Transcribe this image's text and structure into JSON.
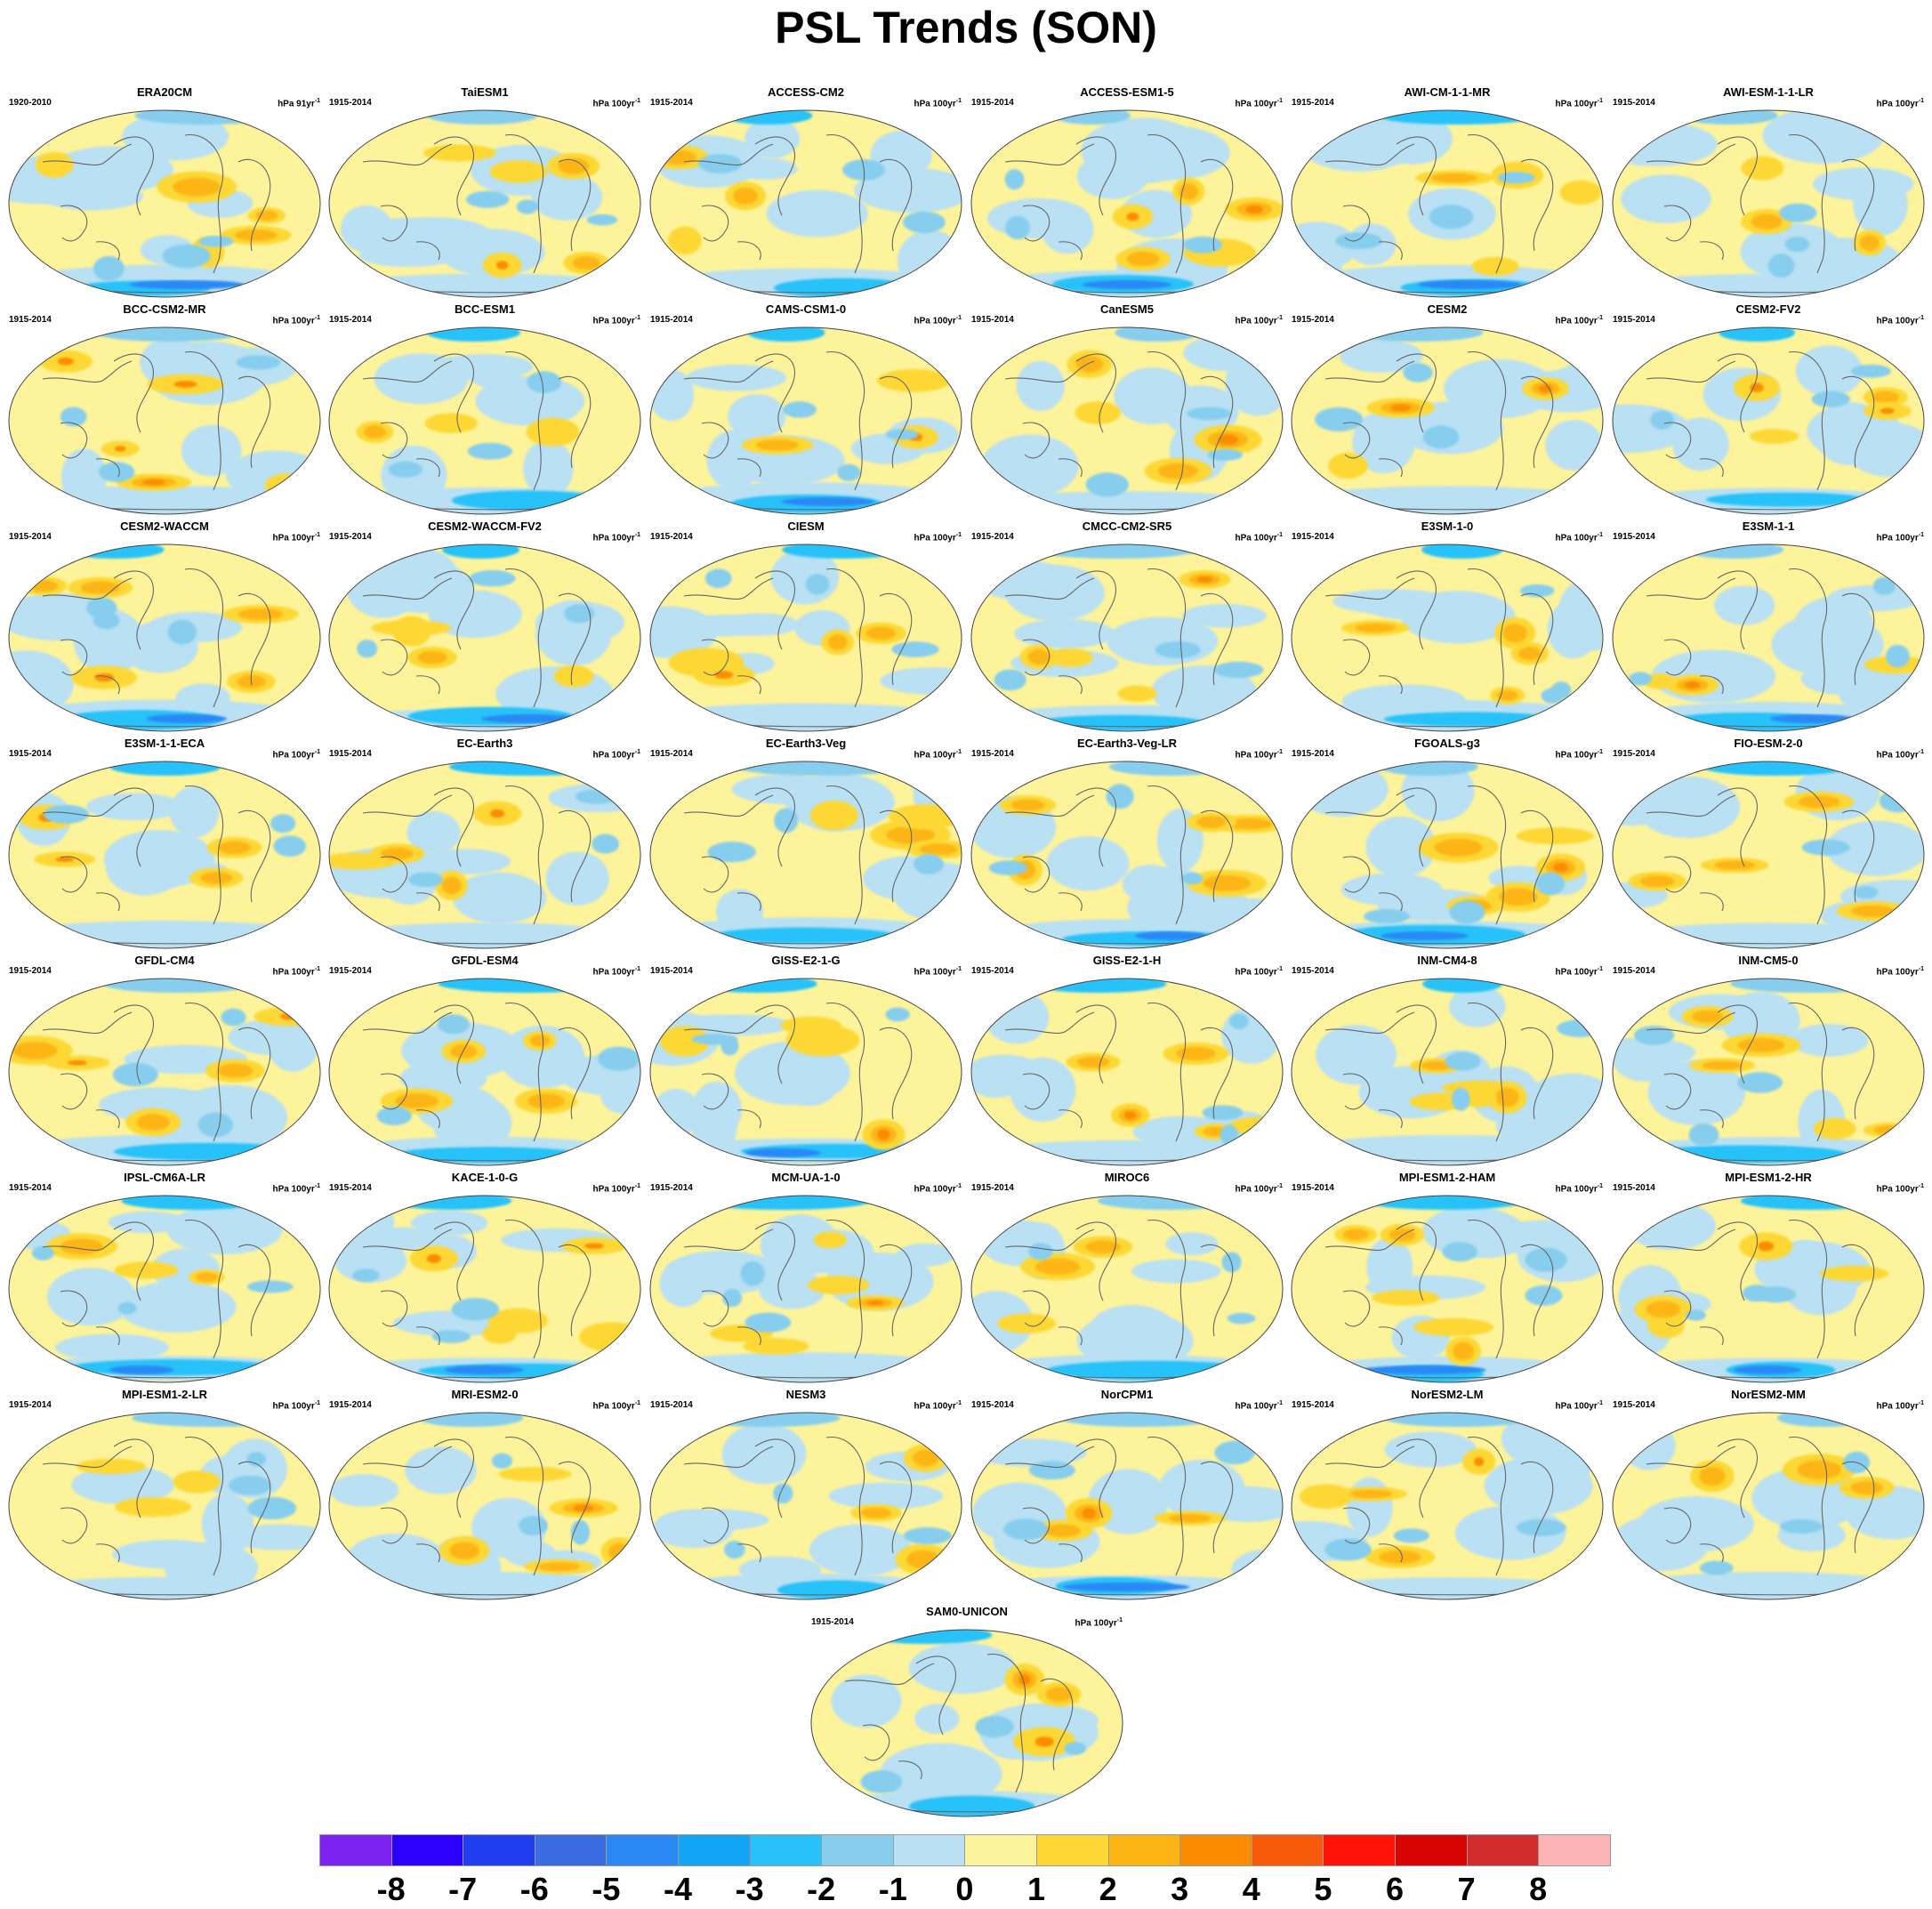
{
  "title": "PSL Trends (SON)",
  "panel_defaults": {
    "period": "1915-2014",
    "units": "hPa 100yr",
    "units_exp": "-1"
  },
  "panels": [
    {
      "name": "ERA20CM",
      "period": "1920-2010",
      "units": "hPa 91yr"
    },
    {
      "name": "TaiESM1"
    },
    {
      "name": "ACCESS-CM2"
    },
    {
      "name": "ACCESS-ESM1-5"
    },
    {
      "name": "AWI-CM-1-1-MR"
    },
    {
      "name": "AWI-ESM-1-1-LR"
    },
    {
      "name": "BCC-CSM2-MR"
    },
    {
      "name": "BCC-ESM1"
    },
    {
      "name": "CAMS-CSM1-0"
    },
    {
      "name": "CanESM5"
    },
    {
      "name": "CESM2"
    },
    {
      "name": "CESM2-FV2"
    },
    {
      "name": "CESM2-WACCM"
    },
    {
      "name": "CESM2-WACCM-FV2"
    },
    {
      "name": "CIESM"
    },
    {
      "name": "CMCC-CM2-SR5"
    },
    {
      "name": "E3SM-1-0"
    },
    {
      "name": "E3SM-1-1"
    },
    {
      "name": "E3SM-1-1-ECA"
    },
    {
      "name": "EC-Earth3"
    },
    {
      "name": "EC-Earth3-Veg"
    },
    {
      "name": "EC-Earth3-Veg-LR"
    },
    {
      "name": "FGOALS-g3"
    },
    {
      "name": "FIO-ESM-2-0"
    },
    {
      "name": "GFDL-CM4"
    },
    {
      "name": "GFDL-ESM4"
    },
    {
      "name": "GISS-E2-1-G"
    },
    {
      "name": "GISS-E2-1-H"
    },
    {
      "name": "INM-CM4-8"
    },
    {
      "name": "INM-CM5-0"
    },
    {
      "name": "IPSL-CM6A-LR"
    },
    {
      "name": "KACE-1-0-G"
    },
    {
      "name": "MCM-UA-1-0"
    },
    {
      "name": "MIROC6"
    },
    {
      "name": "MPI-ESM1-2-HAM"
    },
    {
      "name": "MPI-ESM1-2-HR"
    },
    {
      "name": "MPI-ESM1-2-LR"
    },
    {
      "name": "MRI-ESM2-0"
    },
    {
      "name": "NESM3"
    },
    {
      "name": "NorCPM1"
    },
    {
      "name": "NorESM2-LM"
    },
    {
      "name": "NorESM2-MM"
    },
    {
      "name": "SAM0-UNICON"
    }
  ],
  "colorbar": {
    "colors": [
      "#7b22ee",
      "#2a00fa",
      "#1e3cf0",
      "#3a6be0",
      "#2a88f5",
      "#14a4f5",
      "#26c2f9",
      "#86cdee",
      "#b9e0f3",
      "#fdf39a",
      "#fdd835",
      "#fdb515",
      "#fb8c00",
      "#f75a0a",
      "#fd1205",
      "#d80404",
      "#d12b2b",
      "#fcb4b4"
    ],
    "labels": [
      "-8",
      "-7",
      "-6",
      "-5",
      "-4",
      "-3",
      "-2",
      "-1",
      "0",
      "1",
      "2",
      "3",
      "4",
      "5",
      "6",
      "7",
      "8"
    ]
  },
  "map": {
    "ocean_base": "#fdf39a",
    "coast_color": "#666666"
  }
}
